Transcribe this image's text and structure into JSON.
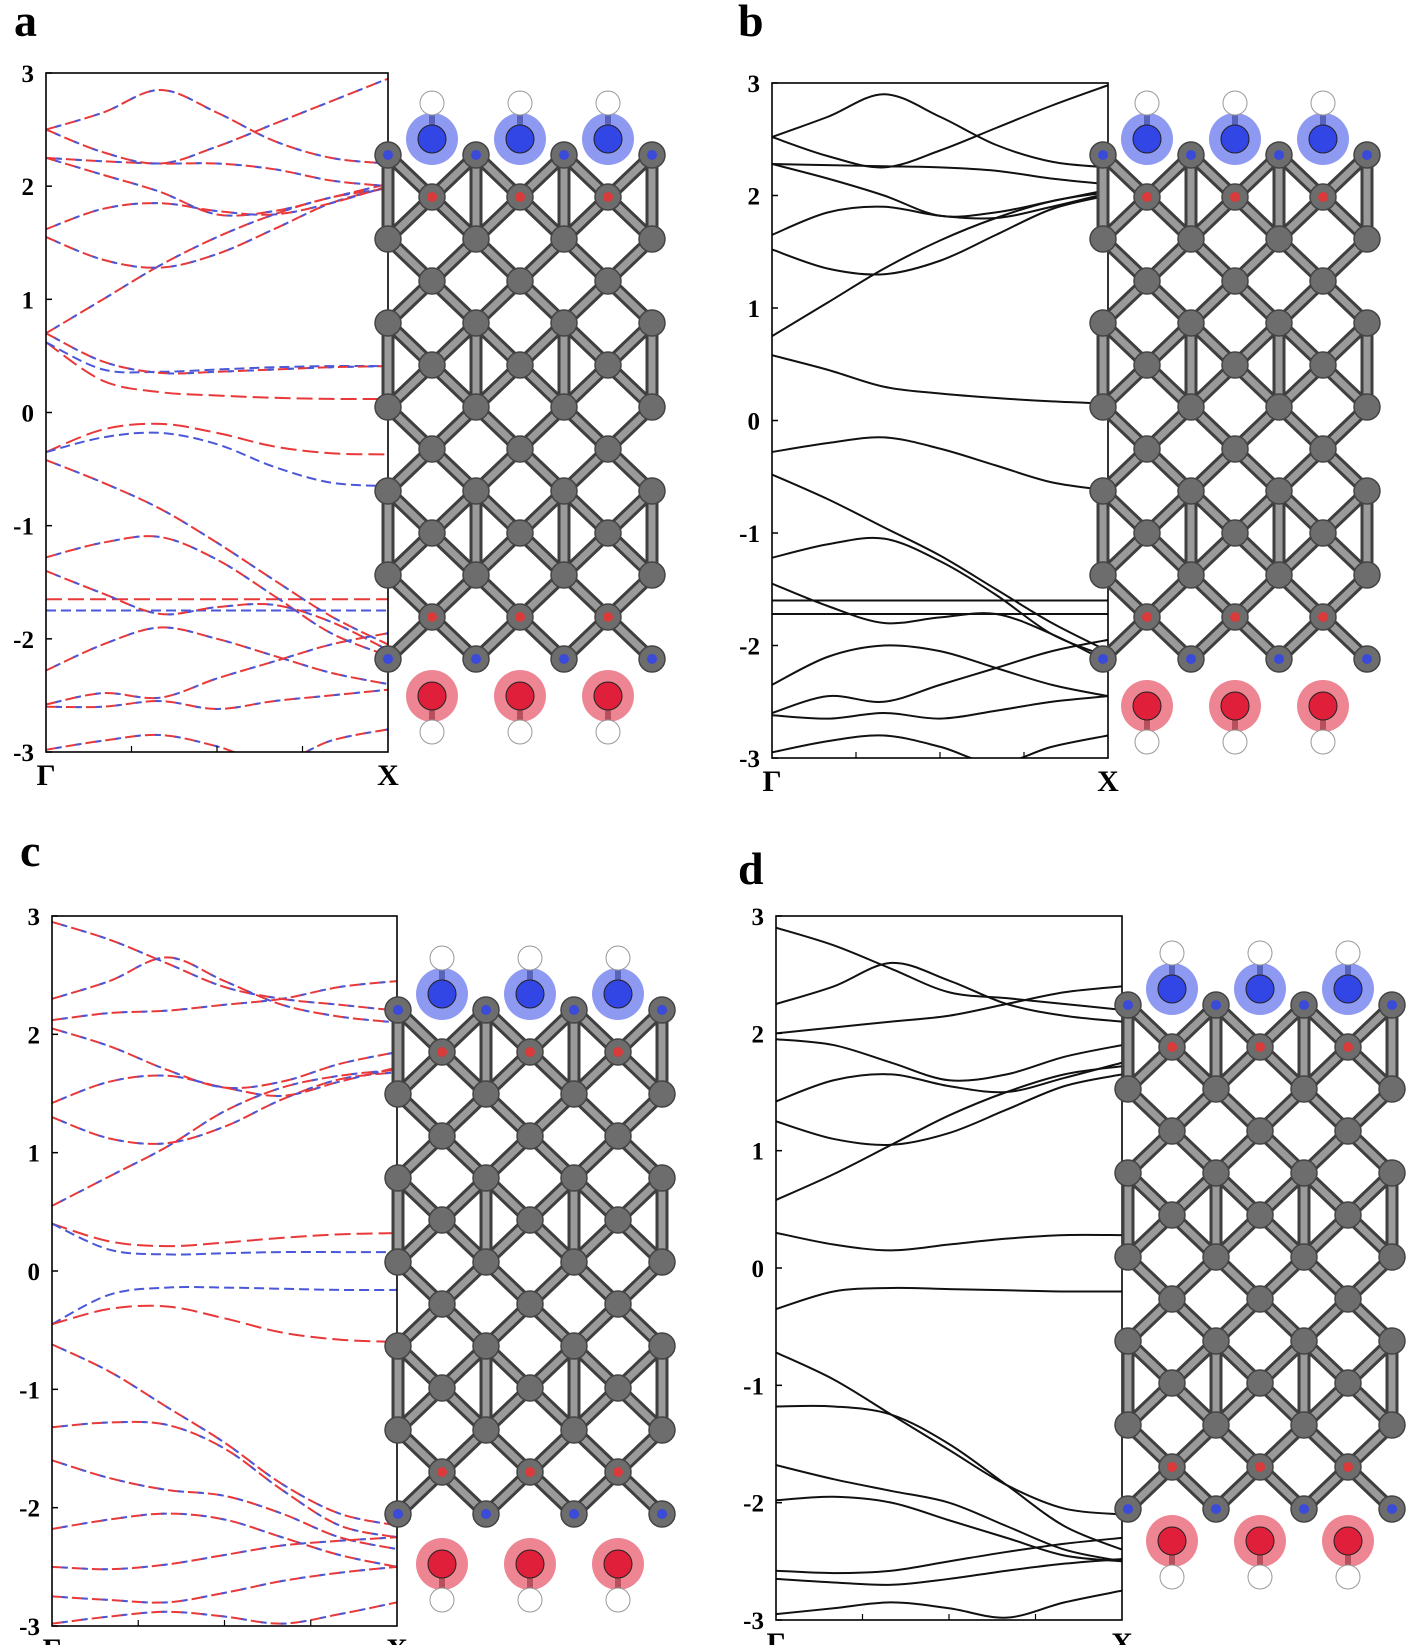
{
  "colors": {
    "spin_up": "#e8383a",
    "spin_down": "#4a57d8",
    "bands": "#111111",
    "carbon": "#6d6d6d",
    "nitrogen_highlight": "#3246e6",
    "oxygen_highlight": "#e0203a",
    "hydrogen": "#ffffff"
  },
  "icons": {
    "structure": "graphene-nanoribbon-ball-and-stick"
  },
  "chart_data": [
    {
      "panel": "a",
      "type": "line",
      "style": "spin-polarized dashed",
      "xlabel": "",
      "ylabel": "",
      "ylim": [
        -3,
        3
      ],
      "yticks": [
        "3",
        "2",
        "1",
        "0",
        "-1",
        "-2",
        "-3"
      ],
      "kpoints": [
        "Γ",
        "X"
      ],
      "grid": false,
      "series": [
        {
          "spin": "up",
          "values": [
            0.62,
            0.28,
            0.18,
            0.15,
            0.13,
            0.12,
            0.12
          ]
        },
        {
          "spin": "down",
          "values": [
            0.62,
            0.38,
            0.36,
            0.38,
            0.4,
            0.41,
            0.41
          ]
        },
        {
          "spin": "up",
          "values": [
            -0.35,
            -0.15,
            -0.1,
            -0.18,
            -0.3,
            -0.36,
            -0.37
          ]
        },
        {
          "spin": "down",
          "values": [
            -0.35,
            -0.22,
            -0.18,
            -0.28,
            -0.48,
            -0.62,
            -0.65
          ]
        },
        {
          "spin": "up",
          "values": [
            -1.65,
            -1.65,
            -1.65,
            -1.65,
            -1.65,
            -1.65,
            -1.65
          ]
        },
        {
          "spin": "down",
          "values": [
            -1.75,
            -1.75,
            -1.75,
            -1.75,
            -1.75,
            -1.75,
            -1.75
          ]
        },
        {
          "spin": "both",
          "values": [
            -0.42,
            -0.62,
            -0.85,
            -1.15,
            -1.48,
            -1.8,
            -2.05
          ]
        },
        {
          "spin": "both",
          "values": [
            -1.28,
            -1.15,
            -1.1,
            -1.3,
            -1.62,
            -1.95,
            -2.15
          ]
        },
        {
          "spin": "both",
          "values": [
            -1.4,
            -1.6,
            -1.78,
            -1.72,
            -1.7,
            -1.85,
            -2.1
          ]
        },
        {
          "spin": "both",
          "values": [
            -2.28,
            -2.05,
            -1.9,
            -2.0,
            -2.15,
            -2.3,
            -2.4
          ]
        },
        {
          "spin": "both",
          "values": [
            -2.58,
            -2.48,
            -2.52,
            -2.35,
            -2.2,
            -2.05,
            -1.95
          ]
        },
        {
          "spin": "both",
          "values": [
            -2.6,
            -2.6,
            -2.55,
            -2.62,
            -2.55,
            -2.5,
            -2.45
          ]
        },
        {
          "spin": "both",
          "values": [
            -2.98,
            -2.9,
            -2.85,
            -2.95,
            -3.1,
            -2.9,
            -2.8
          ]
        },
        {
          "spin": "both",
          "values": [
            0.7,
            1.0,
            1.3,
            1.55,
            1.75,
            1.9,
            1.98
          ]
        },
        {
          "spin": "both",
          "values": [
            0.7,
            0.45,
            0.35,
            0.36,
            0.38,
            0.4,
            0.41
          ]
        },
        {
          "spin": "both",
          "values": [
            1.55,
            1.35,
            1.28,
            1.4,
            1.62,
            1.85,
            1.99
          ]
        },
        {
          "spin": "both",
          "values": [
            1.62,
            1.8,
            1.85,
            1.78,
            1.75,
            1.85,
            2.0
          ]
        },
        {
          "spin": "both",
          "values": [
            2.25,
            2.1,
            1.95,
            1.75,
            1.78,
            1.9,
            2.02
          ]
        },
        {
          "spin": "both",
          "values": [
            2.25,
            2.22,
            2.2,
            2.2,
            2.15,
            2.05,
            2.0
          ]
        },
        {
          "spin": "both",
          "values": [
            2.5,
            2.65,
            2.85,
            2.65,
            2.4,
            2.25,
            2.2
          ]
        },
        {
          "spin": "both",
          "values": [
            2.5,
            2.3,
            2.2,
            2.35,
            2.55,
            2.75,
            2.95
          ]
        }
      ]
    },
    {
      "panel": "b",
      "type": "line",
      "style": "solid",
      "xlabel": "",
      "ylabel": "",
      "ylim": [
        -3,
        3
      ],
      "yticks": [
        "3",
        "2",
        "1",
        "0",
        "-1",
        "-2",
        "-3"
      ],
      "kpoints": [
        "Γ",
        "X"
      ],
      "grid": false,
      "series": [
        {
          "values": [
            0.58,
            0.45,
            0.3,
            0.24,
            0.2,
            0.17,
            0.15
          ]
        },
        {
          "values": [
            -0.28,
            -0.2,
            -0.15,
            -0.25,
            -0.4,
            -0.55,
            -0.62
          ]
        },
        {
          "values": [
            -1.6,
            -1.6,
            -1.6,
            -1.6,
            -1.6,
            -1.6,
            -1.6
          ]
        },
        {
          "values": [
            -1.72,
            -1.72,
            -1.72,
            -1.72,
            -1.72,
            -1.72,
            -1.72
          ]
        },
        {
          "values": [
            -0.48,
            -0.7,
            -0.95,
            -1.2,
            -1.5,
            -1.8,
            -2.05
          ]
        },
        {
          "values": [
            -1.22,
            -1.1,
            -1.05,
            -1.25,
            -1.55,
            -1.9,
            -2.1
          ]
        },
        {
          "values": [
            -1.45,
            -1.65,
            -1.8,
            -1.75,
            -1.72,
            -1.9,
            -2.15
          ]
        },
        {
          "values": [
            -2.35,
            -2.1,
            -2.0,
            -2.05,
            -2.2,
            -2.35,
            -2.45
          ]
        },
        {
          "values": [
            -2.6,
            -2.45,
            -2.5,
            -2.35,
            -2.2,
            -2.05,
            -1.95
          ]
        },
        {
          "values": [
            -2.62,
            -2.65,
            -2.6,
            -2.65,
            -2.58,
            -2.5,
            -2.45
          ]
        },
        {
          "values": [
            -2.95,
            -2.85,
            -2.8,
            -2.9,
            -3.05,
            -2.9,
            -2.8
          ]
        },
        {
          "values": [
            0.75,
            1.05,
            1.35,
            1.6,
            1.8,
            1.95,
            2.03
          ]
        },
        {
          "values": [
            1.52,
            1.35,
            1.3,
            1.42,
            1.65,
            1.88,
            2.0
          ]
        },
        {
          "values": [
            1.65,
            1.85,
            1.9,
            1.82,
            1.8,
            1.9,
            2.02
          ]
        },
        {
          "values": [
            2.28,
            2.15,
            2.0,
            1.82,
            1.85,
            1.95,
            2.05
          ]
        },
        {
          "values": [
            2.28,
            2.27,
            2.26,
            2.25,
            2.22,
            2.15,
            2.1
          ]
        },
        {
          "values": [
            2.52,
            2.7,
            2.9,
            2.7,
            2.45,
            2.3,
            2.25
          ]
        },
        {
          "values": [
            2.52,
            2.35,
            2.25,
            2.4,
            2.6,
            2.8,
            2.98
          ]
        }
      ]
    },
    {
      "panel": "c",
      "type": "line",
      "style": "spin-polarized dashed",
      "xlabel": "",
      "ylabel": "",
      "ylim": [
        -3,
        3
      ],
      "yticks": [
        "3",
        "2",
        "1",
        "0",
        "-1",
        "-2",
        "-3"
      ],
      "kpoints": [
        "Γ",
        "X"
      ],
      "grid": false,
      "series": [
        {
          "spin": "up",
          "values": [
            0.4,
            0.25,
            0.21,
            0.24,
            0.28,
            0.31,
            0.32
          ]
        },
        {
          "spin": "down",
          "values": [
            0.4,
            0.18,
            0.14,
            0.15,
            0.16,
            0.16,
            0.16
          ]
        },
        {
          "spin": "down",
          "values": [
            -0.45,
            -0.2,
            -0.14,
            -0.14,
            -0.15,
            -0.16,
            -0.16
          ]
        },
        {
          "spin": "up",
          "values": [
            -0.45,
            -0.32,
            -0.3,
            -0.4,
            -0.52,
            -0.58,
            -0.6
          ]
        },
        {
          "spin": "both",
          "values": [
            0.55,
            0.8,
            1.05,
            1.35,
            1.55,
            1.65,
            1.7
          ]
        },
        {
          "spin": "both",
          "values": [
            1.3,
            1.12,
            1.08,
            1.22,
            1.45,
            1.62,
            1.68
          ]
        },
        {
          "spin": "both",
          "values": [
            1.42,
            1.6,
            1.65,
            1.55,
            1.48,
            1.6,
            1.72
          ]
        },
        {
          "spin": "both",
          "values": [
            2.05,
            1.9,
            1.7,
            1.55,
            1.6,
            1.75,
            1.85
          ]
        },
        {
          "spin": "both",
          "values": [
            2.12,
            2.18,
            2.2,
            2.25,
            2.3,
            2.4,
            2.45
          ]
        },
        {
          "spin": "both",
          "values": [
            2.3,
            2.45,
            2.65,
            2.45,
            2.25,
            2.15,
            2.1
          ]
        },
        {
          "spin": "both",
          "values": [
            2.95,
            2.8,
            2.6,
            2.4,
            2.3,
            2.25,
            2.2
          ]
        },
        {
          "spin": "both",
          "values": [
            -0.62,
            -0.85,
            -1.15,
            -1.45,
            -1.8,
            -2.05,
            -2.15
          ]
        },
        {
          "spin": "both",
          "values": [
            -1.32,
            -1.28,
            -1.3,
            -1.5,
            -1.85,
            -2.15,
            -2.25
          ]
        },
        {
          "spin": "both",
          "values": [
            -1.6,
            -1.75,
            -1.85,
            -1.9,
            -2.05,
            -2.25,
            -2.35
          ]
        },
        {
          "spin": "both",
          "values": [
            -2.18,
            -2.1,
            -2.05,
            -2.1,
            -2.25,
            -2.4,
            -2.5
          ]
        },
        {
          "spin": "both",
          "values": [
            -2.5,
            -2.52,
            -2.48,
            -2.4,
            -2.32,
            -2.28,
            -2.25
          ]
        },
        {
          "spin": "both",
          "values": [
            -2.75,
            -2.78,
            -2.8,
            -2.72,
            -2.62,
            -2.55,
            -2.5
          ]
        },
        {
          "spin": "both",
          "values": [
            -2.98,
            -2.92,
            -2.88,
            -2.92,
            -2.98,
            -2.9,
            -2.8
          ]
        }
      ]
    },
    {
      "panel": "d",
      "type": "line",
      "style": "solid",
      "xlabel": "",
      "ylabel": "",
      "ylim": [
        -3,
        3
      ],
      "yticks": [
        "3",
        "2",
        "1",
        "0",
        "-1",
        "-2",
        "-3"
      ],
      "kpoints": [
        "Γ",
        "X"
      ],
      "grid": false,
      "series": [
        {
          "values": [
            0.3,
            0.2,
            0.15,
            0.2,
            0.25,
            0.28,
            0.28
          ]
        },
        {
          "values": [
            -0.35,
            -0.2,
            -0.17,
            -0.18,
            -0.19,
            -0.2,
            -0.2
          ]
        },
        {
          "values": [
            0.58,
            0.8,
            1.05,
            1.3,
            1.5,
            1.65,
            1.72
          ]
        },
        {
          "values": [
            1.25,
            1.1,
            1.05,
            1.15,
            1.35,
            1.55,
            1.65
          ]
        },
        {
          "values": [
            1.42,
            1.6,
            1.65,
            1.55,
            1.5,
            1.62,
            1.75
          ]
        },
        {
          "values": [
            1.95,
            1.9,
            1.75,
            1.6,
            1.65,
            1.8,
            1.9
          ]
        },
        {
          "values": [
            2.0,
            2.05,
            2.1,
            2.15,
            2.25,
            2.35,
            2.4
          ]
        },
        {
          "values": [
            2.25,
            2.4,
            2.6,
            2.45,
            2.25,
            2.15,
            2.1
          ]
        },
        {
          "values": [
            2.9,
            2.75,
            2.55,
            2.35,
            2.3,
            2.25,
            2.2
          ]
        },
        {
          "values": [
            -0.72,
            -0.95,
            -1.25,
            -1.55,
            -1.85,
            -2.05,
            -2.1
          ]
        },
        {
          "values": [
            -1.18,
            -1.18,
            -1.25,
            -1.5,
            -1.85,
            -2.2,
            -2.4
          ]
        },
        {
          "values": [
            -1.68,
            -1.8,
            -1.9,
            -2.0,
            -2.2,
            -2.4,
            -2.5
          ]
        },
        {
          "values": [
            -1.98,
            -1.95,
            -2.0,
            -2.15,
            -2.3,
            -2.45,
            -2.5
          ]
        },
        {
          "values": [
            -2.58,
            -2.6,
            -2.58,
            -2.5,
            -2.42,
            -2.35,
            -2.3
          ]
        },
        {
          "values": [
            -2.65,
            -2.68,
            -2.7,
            -2.65,
            -2.58,
            -2.52,
            -2.48
          ]
        },
        {
          "values": [
            -2.95,
            -2.9,
            -2.85,
            -2.9,
            -2.98,
            -2.85,
            -2.75
          ]
        }
      ]
    }
  ],
  "panels": [
    {
      "label": "a",
      "ytick_labels": [
        "3",
        "2",
        "1",
        "0",
        "-1",
        "-2",
        "-3"
      ],
      "k_left": "Γ",
      "k_right": "X"
    },
    {
      "label": "b",
      "ytick_labels": [
        "3",
        "2",
        "1",
        "0",
        "-1",
        "-2",
        "-3"
      ],
      "k_left": "Γ",
      "k_right": "X"
    },
    {
      "label": "c",
      "ytick_labels": [
        "3",
        "2",
        "1",
        "0",
        "-1",
        "-2",
        "-3"
      ],
      "k_left": "Γ",
      "k_right": "X"
    },
    {
      "label": "d",
      "ytick_labels": [
        "3",
        "2",
        "1",
        "0",
        "-1",
        "-2",
        "-3"
      ],
      "k_left": "Γ",
      "k_right": "X"
    }
  ]
}
